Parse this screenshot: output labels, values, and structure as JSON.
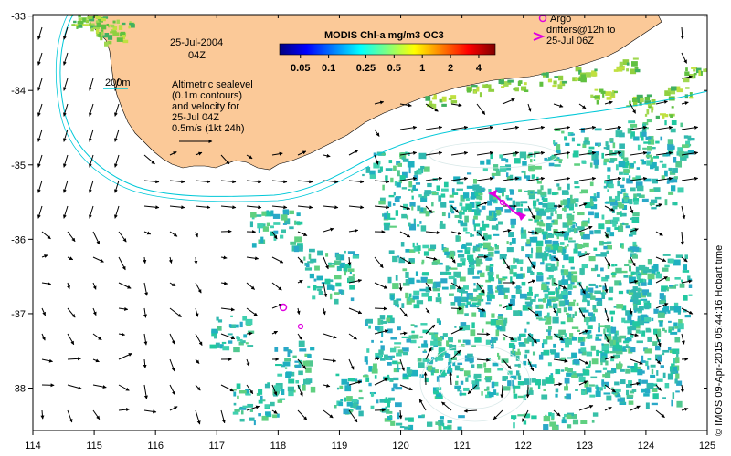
{
  "title": {
    "date": "25-Jul-2004",
    "time": "04Z"
  },
  "colorbar": {
    "title": "MODIS Chl-a mg/m3 OC3",
    "tick_labels": [
      "0.05",
      "0.1",
      "0.25",
      "0.5",
      "1",
      "2",
      "4"
    ],
    "tick_values": [
      0.05,
      0.1,
      0.25,
      0.5,
      1,
      2,
      4
    ],
    "range": [
      0.03,
      6
    ],
    "scale": "log",
    "colors": [
      "#00007f",
      "#0000ff",
      "#007fff",
      "#00ffff",
      "#7fff7f",
      "#ffff00",
      "#ff7f00",
      "#ff0000",
      "#7f0000"
    ]
  },
  "legend": {
    "contour_label": "200m",
    "contour_color": "#00c8d8",
    "description": [
      "Altimetric sealevel",
      "(0.1m contours)",
      "and velocity for",
      "25-Jul 04Z",
      "0.5m/s (1kt 24h)"
    ],
    "argo_lines": [
      "Argo",
      "drifters@12h to",
      "25-Jul 06Z"
    ],
    "argo_color": "#e000e0"
  },
  "axes": {
    "x_ticks": [
      "114",
      "115",
      "116",
      "117",
      "118",
      "119",
      "120",
      "121",
      "122",
      "123",
      "124",
      "125"
    ],
    "y_ticks": [
      "-33",
      "-34",
      "-35",
      "-36",
      "-37",
      "-38"
    ],
    "lon_range": [
      114,
      125
    ],
    "lat_range": [
      -38.57,
      -32.98
    ]
  },
  "credit": "© IMOS 09-Apr-2015 05:44:16 Hobart time",
  "colors": {
    "land": "#fbc998",
    "ocean": "#ffffff",
    "frame": "#000000"
  }
}
